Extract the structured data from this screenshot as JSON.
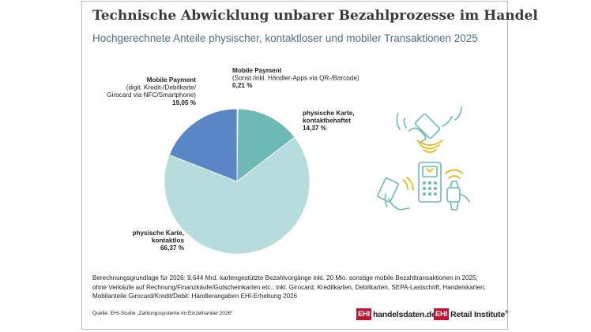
{
  "title": "Technische Abwicklung unbarer Bezahlprozesse im Handel",
  "subtitle": "Hochgerechnete Anteile physischer, kontaktloser und mobiler Transaktionen 2025",
  "chart_data": {
    "type": "pie",
    "title": "Technische Abwicklung unbarer Bezahlprozesse im Handel",
    "subtitle": "Hochgerechnete Anteile physischer, kontaktloser und mobiler Transaktionen 2025",
    "slices": [
      {
        "name": "Mobile Payment (Sonst./inkl. Händler-Apps via QR-/Barcode)",
        "value": 0.21,
        "label_lines": [
          "Mobile Payment",
          "(Sonst./inkl. Händler-Apps via QR-/Barcode)",
          "0,21 %"
        ],
        "color": "#cfe3e8"
      },
      {
        "name": "physische Karte, kontaktbehaftet",
        "value": 14.37,
        "label_lines": [
          "physische Karte,",
          "kontaktbehaftet",
          "14,37 %"
        ],
        "color": "#6cb9b5"
      },
      {
        "name": "physische Karte, kontaktlos",
        "value": 66.37,
        "label_lines": [
          "physische Karte,",
          "kontaktlos",
          "66,37 %"
        ],
        "color": "#b6dcde"
      },
      {
        "name": "Mobile Payment (digit. Kredit-/Debitkarte/ Girocard via NFC/Smartphone)",
        "value": 19.05,
        "label_lines": [
          "Mobile Payment",
          "(digit. Kredit-/Debitkarte/",
          "Girocard via NFC/Smartphone)",
          "19,05 %"
        ],
        "color": "#5a86c5"
      }
    ]
  },
  "footnote": [
    "Berechnungsgrundlage für 2026: 9,644 Mrd. kartengestützte Bezahlvorgänge inkl. 20 Mio. sonstige mobile Bezahltransaktionen in 2025;",
    "ohne Verkäufe auf Rechnung/Finanzkäufe/Gutscheinkarten etc.; inkl. Girocard, Kreditkarten, Debitkarten, SEPA-Lastschrift, Handelskarten;",
    "Mobilanteile Girocard/Kredit/Debit: Händlerangaben EHI-Erhebung 2026"
  ],
  "source": "Quelle: EHI-Studie „Zahlungssysteme im Einzelhandel 2026“",
  "logos": {
    "logo1_box": "EHI",
    "logo1_text": "handelsdaten.de",
    "logo2_box": "EHI",
    "logo2_text": "Retail Institute",
    "logo2_mark": "®"
  },
  "icons": [
    "smartphone-payment-icon",
    "card-terminal-icon",
    "contactless-card-icon",
    "smartwatch-icon"
  ],
  "colors": {
    "accent": "#7fc4c0",
    "teal_dark": "#6cb9b5",
    "blue": "#5a86c5",
    "light": "#b6dcde",
    "red": "#c8102e"
  }
}
